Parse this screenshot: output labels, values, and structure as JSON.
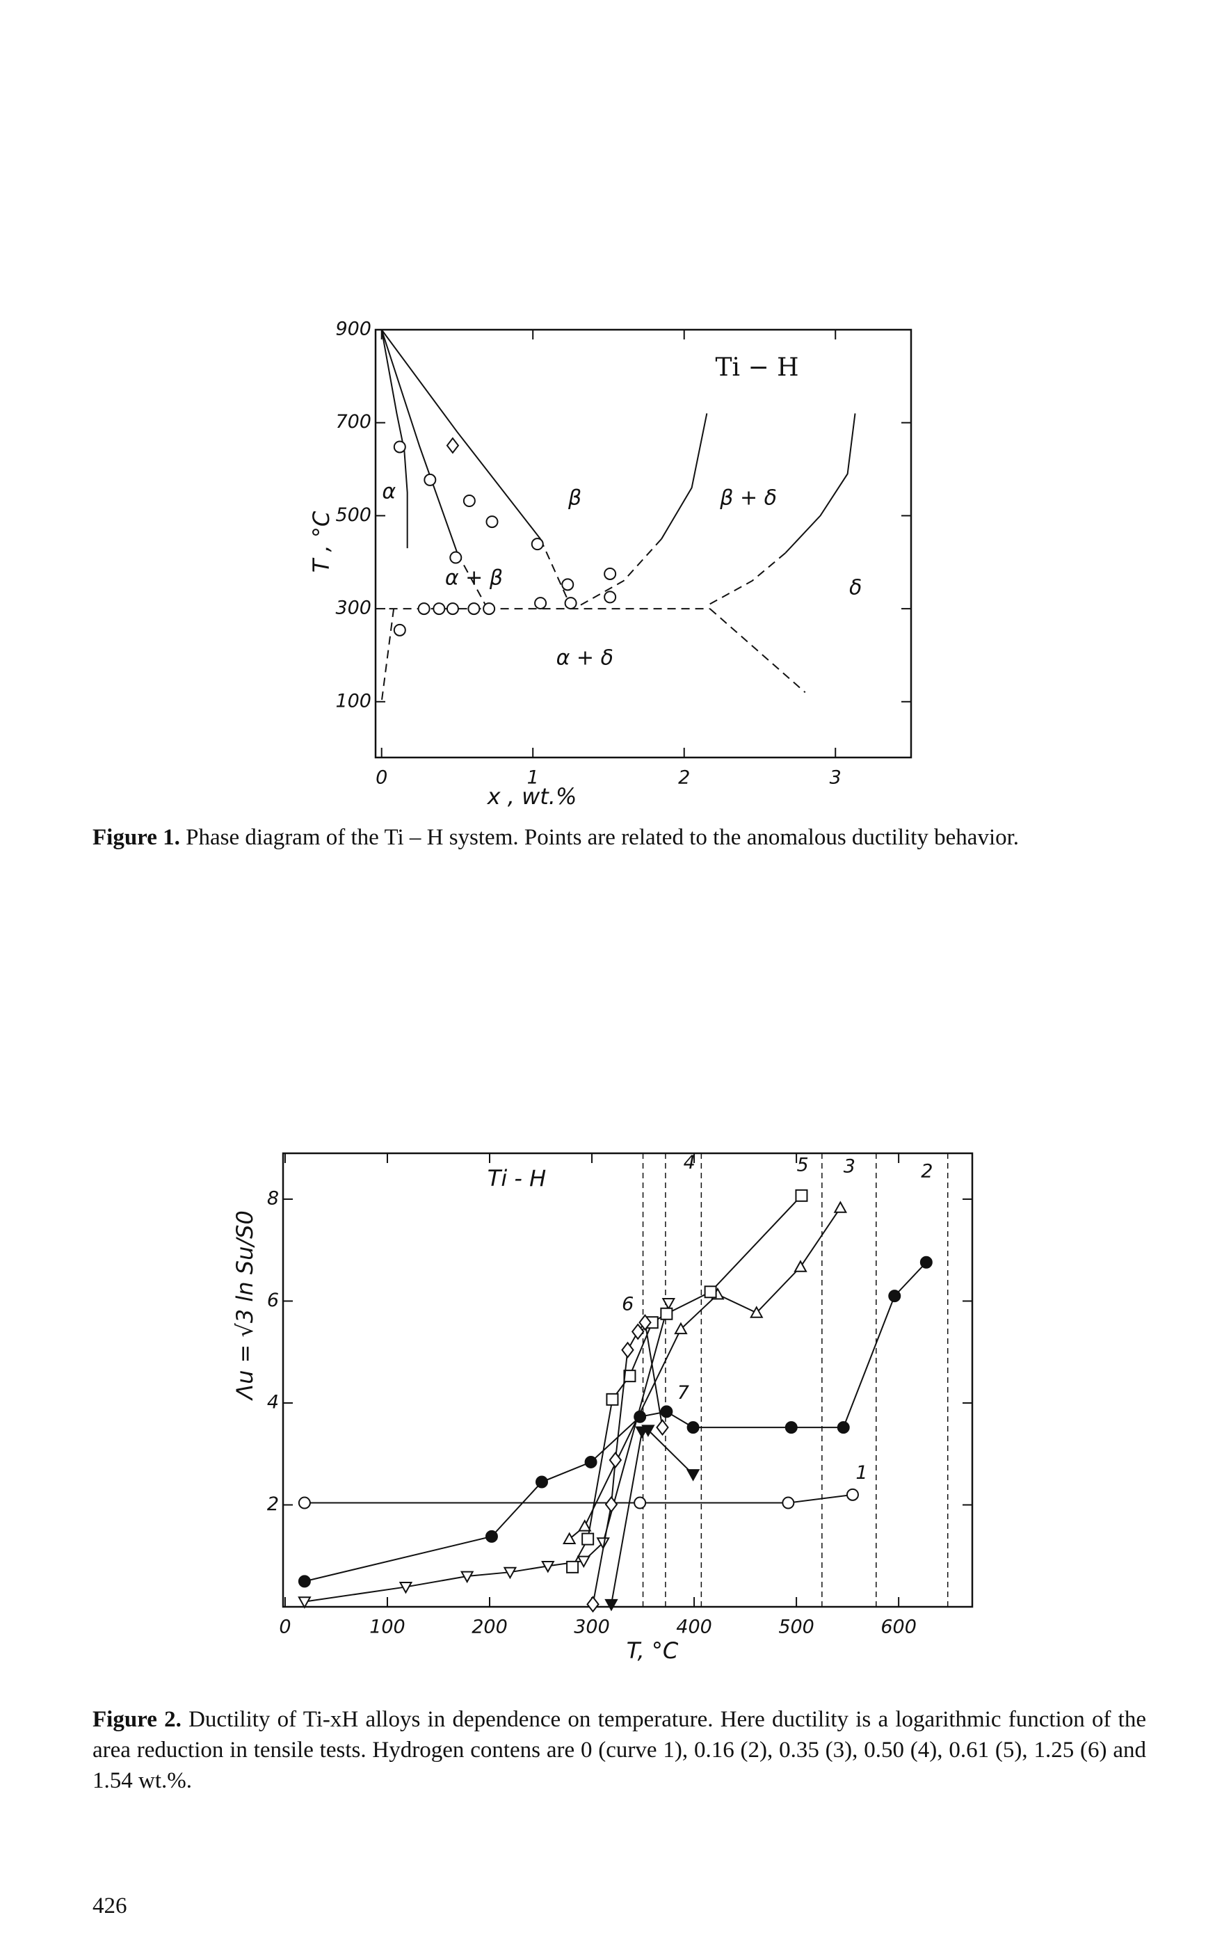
{
  "chart_data": [
    {
      "type": "line",
      "xlabel": "x , wt.%",
      "ylabel": "T , °C",
      "xlim": [
        -0.04,
        3.5
      ],
      "ylim": [
        -20,
        900
      ],
      "xticks": [
        0,
        1,
        2,
        3
      ],
      "yticks": [
        100,
        300,
        500,
        700,
        900
      ],
      "annotations": [
        "Ti − H",
        "α",
        "β",
        "β + δ",
        "α + β",
        "α + δ",
        "δ"
      ],
      "curves": [
        {
          "style": "solid",
          "x": [
            0,
            0.1,
            0.15,
            0.17,
            0.17
          ],
          "y": [
            900,
            720,
            640,
            550,
            430
          ]
        },
        {
          "style": "solid",
          "x": [
            0,
            0.25,
            0.5
          ],
          "y": [
            900,
            650,
            420
          ]
        },
        {
          "style": "dashed",
          "x": [
            0.5,
            0.7
          ],
          "y": [
            420,
            300
          ]
        },
        {
          "style": "solid",
          "x": [
            0,
            0.5,
            1.05
          ],
          "y": [
            900,
            680,
            450
          ]
        },
        {
          "style": "dashed",
          "x": [
            1.05,
            1.25
          ],
          "y": [
            450,
            305
          ]
        },
        {
          "style": "solid",
          "x": [
            2.15,
            2.05,
            1.85
          ],
          "y": [
            720,
            560,
            450
          ]
        },
        {
          "style": "dashed",
          "x": [
            1.85,
            1.6,
            1.3
          ],
          "y": [
            450,
            360,
            305
          ]
        },
        {
          "style": "solid",
          "x": [
            3.13,
            3.08,
            2.9,
            2.67
          ],
          "y": [
            720,
            590,
            500,
            420
          ]
        },
        {
          "style": "dashed",
          "x": [
            2.67,
            2.45,
            2.17
          ],
          "y": [
            420,
            360,
            310
          ]
        },
        {
          "style": "dashed",
          "x": [
            0.05,
            2.17
          ],
          "y": [
            300,
            300
          ]
        },
        {
          "style": "dashed",
          "x": [
            2.17,
            2.8
          ],
          "y": [
            300,
            120
          ]
        },
        {
          "style": "dashed",
          "x": [
            0.08,
            0
          ],
          "y": [
            300,
            100
          ]
        }
      ],
      "points": [
        {
          "marker": "circle",
          "x": [
            0.12,
            0.32,
            0.58,
            0.73,
            0.49,
            1.03,
            1.23,
            1.51,
            1.51,
            1.25,
            0.28,
            0.38,
            0.47,
            0.61,
            0.71,
            1.05,
            0.12
          ],
          "y": [
            648,
            577,
            532,
            487,
            410,
            439,
            352,
            375,
            325,
            312,
            300,
            300,
            300,
            300,
            300,
            312,
            254
          ]
        },
        {
          "marker": "diamond",
          "x": [
            0.47
          ],
          "y": [
            651
          ]
        }
      ]
    },
    {
      "type": "line",
      "title": "Ti - H",
      "xlabel": "T, °C",
      "ylabel": "Λu = √3 ln Su/S0",
      "xlim": [
        -2,
        672
      ],
      "ylim": [
        0,
        8.9
      ],
      "xticks": [
        0,
        100,
        200,
        300,
        400,
        500,
        600
      ],
      "yticks": [
        2,
        4,
        6,
        8
      ],
      "vlines": [
        350,
        372,
        407,
        525,
        578,
        648
      ],
      "series": [
        {
          "name": "1",
          "marker": "circle",
          "x": [
            19,
            347,
            492,
            555
          ],
          "y": [
            2.04,
            2.04,
            2.04,
            2.2
          ]
        },
        {
          "name": "2",
          "marker": "circle-filled",
          "x": [
            19,
            202,
            251,
            299,
            347,
            373,
            399,
            495,
            546,
            596,
            627
          ],
          "y": [
            0.5,
            1.38,
            2.45,
            2.84,
            3.73,
            3.83,
            3.52,
            3.52,
            3.52,
            6.1,
            6.76
          ]
        },
        {
          "name": "3",
          "marker": "triangle-up",
          "x": [
            278,
            293,
            387,
            423,
            461,
            504,
            543
          ],
          "y": [
            1.33,
            1.58,
            5.45,
            6.13,
            5.77,
            6.67,
            7.83
          ]
        },
        {
          "name": "4",
          "marker": "triangle-down",
          "x": [
            19,
            118,
            178,
            220,
            257,
            292,
            311,
            375
          ],
          "y": [
            0.1,
            0.39,
            0.6,
            0.68,
            0.8,
            0.9,
            1.26,
            5.96
          ]
        },
        {
          "name": "5",
          "marker": "square",
          "x": [
            281,
            296,
            320,
            337,
            359,
            373,
            416,
            505
          ],
          "y": [
            0.78,
            1.33,
            4.07,
            4.53,
            5.58,
            5.75,
            6.18,
            8.07
          ]
        },
        {
          "name": "6",
          "marker": "diamond",
          "x": [
            301,
            319,
            323,
            335,
            345,
            352,
            369
          ],
          "y": [
            0.05,
            2.01,
            2.88,
            5.04,
            5.4,
            5.58,
            3.52
          ]
        },
        {
          "name": "7",
          "marker": "triangle-down-filled",
          "x": [
            319,
            349,
            355,
            399
          ],
          "y": [
            0.05,
            3.44,
            3.47,
            2.6
          ]
        }
      ]
    }
  ],
  "captions": [
    {
      "label": "Figure 1.",
      "text": "Phase diagram of the Ti – H system. Points are related to the anomalous ductility behavior."
    },
    {
      "label": "Figure 2.",
      "text": "Ductility of Ti-xH alloys in dependence on temperature. Here ductility is a logarithmic function of the area reduction in tensile tests. Hydrogen contens are 0 (curve 1), 0.16 (2), 0.35 (3), 0.50 (4), 0.61 (5), 1.25 (6) and 1.54 wt.%."
    }
  ],
  "page_number": "426"
}
